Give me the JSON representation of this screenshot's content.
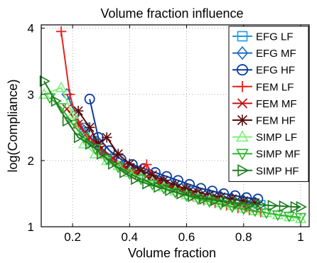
{
  "chart_data": {
    "type": "line",
    "title": "Volume fraction influence",
    "xlabel": "Volume fraction",
    "ylabel": "log(Compliance)",
    "xlim": [
      0.09,
      1.03
    ],
    "ylim": [
      1.0,
      4.05
    ],
    "xticks": [
      0.2,
      0.4,
      0.6,
      0.8,
      1
    ],
    "xtick_labels": [
      "0.2",
      "0.4",
      "0.6",
      "0.8",
      "1"
    ],
    "yticks": [
      1,
      2,
      3,
      4
    ],
    "ytick_labels": [
      "1",
      "2",
      "3",
      "4"
    ],
    "grid": true,
    "legend_position": "top-right",
    "series": [
      {
        "name": "EFG LF",
        "color": "#1e9be0",
        "marker": "square",
        "x": [
          0.24,
          0.27,
          0.3,
          0.34,
          0.38,
          0.42,
          0.46,
          0.5,
          0.54,
          0.58,
          0.62,
          0.66,
          0.7,
          0.74,
          0.78,
          0.82,
          0.86
        ],
        "y": [
          2.5,
          2.3,
          2.15,
          2.02,
          1.92,
          1.83,
          1.76,
          1.7,
          1.64,
          1.58,
          1.54,
          1.5,
          1.46,
          1.43,
          1.4,
          1.36,
          1.33
        ]
      },
      {
        "name": "EFG MF",
        "color": "#1a6fc0",
        "marker": "diamond",
        "x": [
          0.18,
          0.21,
          0.24,
          0.28,
          0.32,
          0.36,
          0.4,
          0.44,
          0.48,
          0.52,
          0.56,
          0.6,
          0.64,
          0.68,
          0.72,
          0.76,
          0.8,
          0.84
        ],
        "y": [
          3.0,
          2.7,
          2.45,
          2.28,
          2.12,
          1.98,
          1.88,
          1.8,
          1.73,
          1.67,
          1.61,
          1.56,
          1.52,
          1.48,
          1.45,
          1.42,
          1.39,
          1.36
        ]
      },
      {
        "name": "EFG HF",
        "color": "#0b3c9e",
        "marker": "circle",
        "x": [
          0.26,
          0.29,
          0.33,
          0.37,
          0.41,
          0.45,
          0.49,
          0.53,
          0.57,
          0.61,
          0.65,
          0.69,
          0.73,
          0.77,
          0.81,
          0.85
        ],
        "y": [
          2.93,
          2.35,
          2.15,
          2.02,
          1.94,
          1.88,
          1.82,
          1.76,
          1.7,
          1.64,
          1.58,
          1.54,
          1.5,
          1.47,
          1.44,
          1.42
        ]
      },
      {
        "name": "FEM LF",
        "color": "#e8231c",
        "marker": "plus",
        "x": [
          0.16,
          0.19,
          0.22,
          0.26,
          0.3,
          0.34,
          0.38,
          0.42,
          0.46,
          0.5,
          0.54,
          0.58,
          0.62,
          0.66,
          0.7,
          0.74,
          0.78,
          0.82,
          0.86
        ],
        "y": [
          3.95,
          3.0,
          2.55,
          2.28,
          2.1,
          1.98,
          1.88,
          1.8,
          1.94,
          1.66,
          1.58,
          1.52,
          1.47,
          1.4,
          1.36,
          1.32,
          1.28,
          1.25,
          1.22
        ]
      },
      {
        "name": "FEM MF",
        "color": "#c01616",
        "marker": "x",
        "x": [
          0.18,
          0.22,
          0.26,
          0.3,
          0.34,
          0.38,
          0.42,
          0.46,
          0.5,
          0.54,
          0.58,
          0.62,
          0.66,
          0.7,
          0.74,
          0.78,
          0.82
        ],
        "y": [
          2.78,
          2.55,
          2.35,
          2.18,
          2.04,
          1.92,
          1.83,
          1.76,
          1.69,
          1.62,
          1.56,
          1.5,
          1.45,
          1.4,
          1.36,
          1.32,
          1.28
        ]
      },
      {
        "name": "FEM HF",
        "color": "#5a0d0d",
        "marker": "asterisk",
        "x": [
          0.22,
          0.26,
          0.29,
          0.32,
          0.36,
          0.4,
          0.44,
          0.48,
          0.52,
          0.56,
          0.6,
          0.64,
          0.68,
          0.72,
          0.76,
          0.8,
          0.84
        ],
        "y": [
          2.75,
          2.5,
          2.25,
          2.35,
          2.1,
          1.95,
          1.85,
          1.78,
          1.7,
          1.63,
          1.57,
          1.52,
          1.48,
          1.45,
          1.42,
          1.39,
          1.36
        ]
      },
      {
        "name": "SIMP LF",
        "color": "#7ef07e",
        "marker": "triangle-up",
        "x": [
          0.1,
          0.16,
          0.2,
          0.24,
          0.28,
          0.32,
          0.36,
          0.4,
          0.44,
          0.48,
          0.52,
          0.56,
          0.6,
          0.64,
          0.68,
          0.72,
          0.76,
          0.8,
          0.84,
          0.88,
          0.92,
          0.96,
          1.0
        ],
        "y": [
          3.0,
          3.1,
          2.7,
          2.25,
          2.1,
          2.0,
          1.92,
          1.82,
          1.74,
          1.67,
          1.6,
          1.54,
          1.48,
          1.44,
          1.4,
          1.36,
          1.32,
          1.28,
          1.24,
          1.21,
          1.18,
          1.15,
          1.12
        ]
      },
      {
        "name": "SIMP MF",
        "color": "#2fb52f",
        "marker": "triangle-down",
        "x": [
          0.12,
          0.16,
          0.2,
          0.24,
          0.28,
          0.32,
          0.36,
          0.4,
          0.44,
          0.48,
          0.52,
          0.56,
          0.6,
          0.64,
          0.68,
          0.72,
          0.76,
          0.8,
          0.84,
          0.88,
          0.92,
          0.96,
          1.0
        ],
        "y": [
          2.95,
          2.8,
          2.55,
          2.35,
          2.18,
          2.02,
          1.9,
          1.8,
          1.72,
          1.64,
          1.58,
          1.52,
          1.47,
          1.42,
          1.38,
          1.34,
          1.3,
          1.27,
          1.24,
          1.21,
          1.18,
          1.16,
          1.14
        ]
      },
      {
        "name": "SIMP HF",
        "color": "#1f7a1f",
        "marker": "triangle-right",
        "x": [
          0.1,
          0.14,
          0.18,
          0.22,
          0.26,
          0.3,
          0.34,
          0.38,
          0.42,
          0.46,
          0.5,
          0.54,
          0.58,
          0.62,
          0.66,
          0.7,
          0.74,
          0.78,
          0.82,
          0.86,
          0.9,
          0.94,
          0.98,
          1.0
        ],
        "y": [
          3.2,
          2.9,
          2.6,
          2.35,
          2.25,
          2.1,
          1.95,
          1.82,
          1.72,
          1.65,
          1.6,
          1.55,
          1.5,
          1.46,
          1.42,
          1.4,
          1.38,
          1.36,
          1.34,
          1.33,
          1.32,
          1.31,
          1.3,
          1.3
        ]
      }
    ]
  }
}
